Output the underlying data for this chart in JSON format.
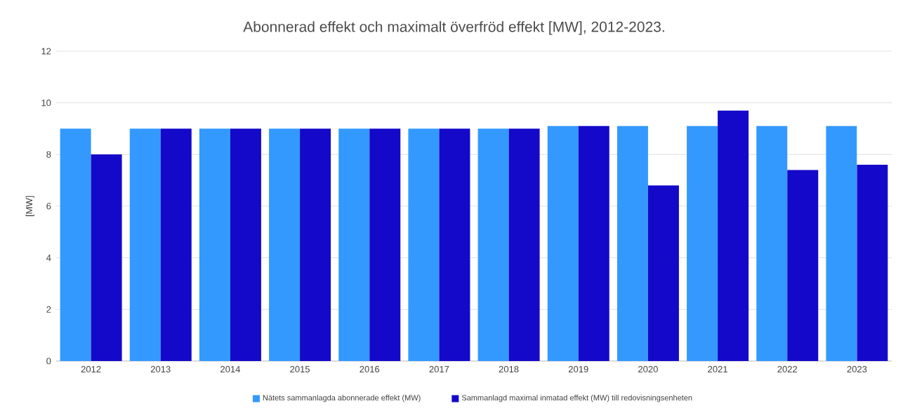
{
  "chart_data": {
    "type": "bar",
    "title": "Abonnerad effekt och maximalt överfröd effekt [MW], 2012-2023.",
    "ylabel": "[MW]",
    "categories": [
      "2012",
      "2013",
      "2014",
      "2015",
      "2016",
      "2017",
      "2018",
      "2019",
      "2020",
      "2021",
      "2022",
      "2023"
    ],
    "series": [
      {
        "name": "Nätets sammanlagda abonnerade effekt (MW)",
        "color": "#3399ff",
        "values": [
          9,
          9,
          9,
          9,
          9,
          9,
          9,
          9.1,
          9.1,
          9.1,
          9.1,
          9.1
        ]
      },
      {
        "name": "Sammanlagd maximal inmatad effekt (MW) till redovisningsenheten",
        "color": "#1409c9",
        "values": [
          8,
          9,
          9,
          9,
          9,
          9,
          9,
          9.1,
          6.8,
          9.7,
          7.4,
          7.6
        ]
      }
    ],
    "ylim": [
      0,
      12
    ],
    "yticks": [
      0,
      2,
      4,
      6,
      8,
      10,
      12
    ],
    "grid": "y",
    "legend": "bottom"
  }
}
